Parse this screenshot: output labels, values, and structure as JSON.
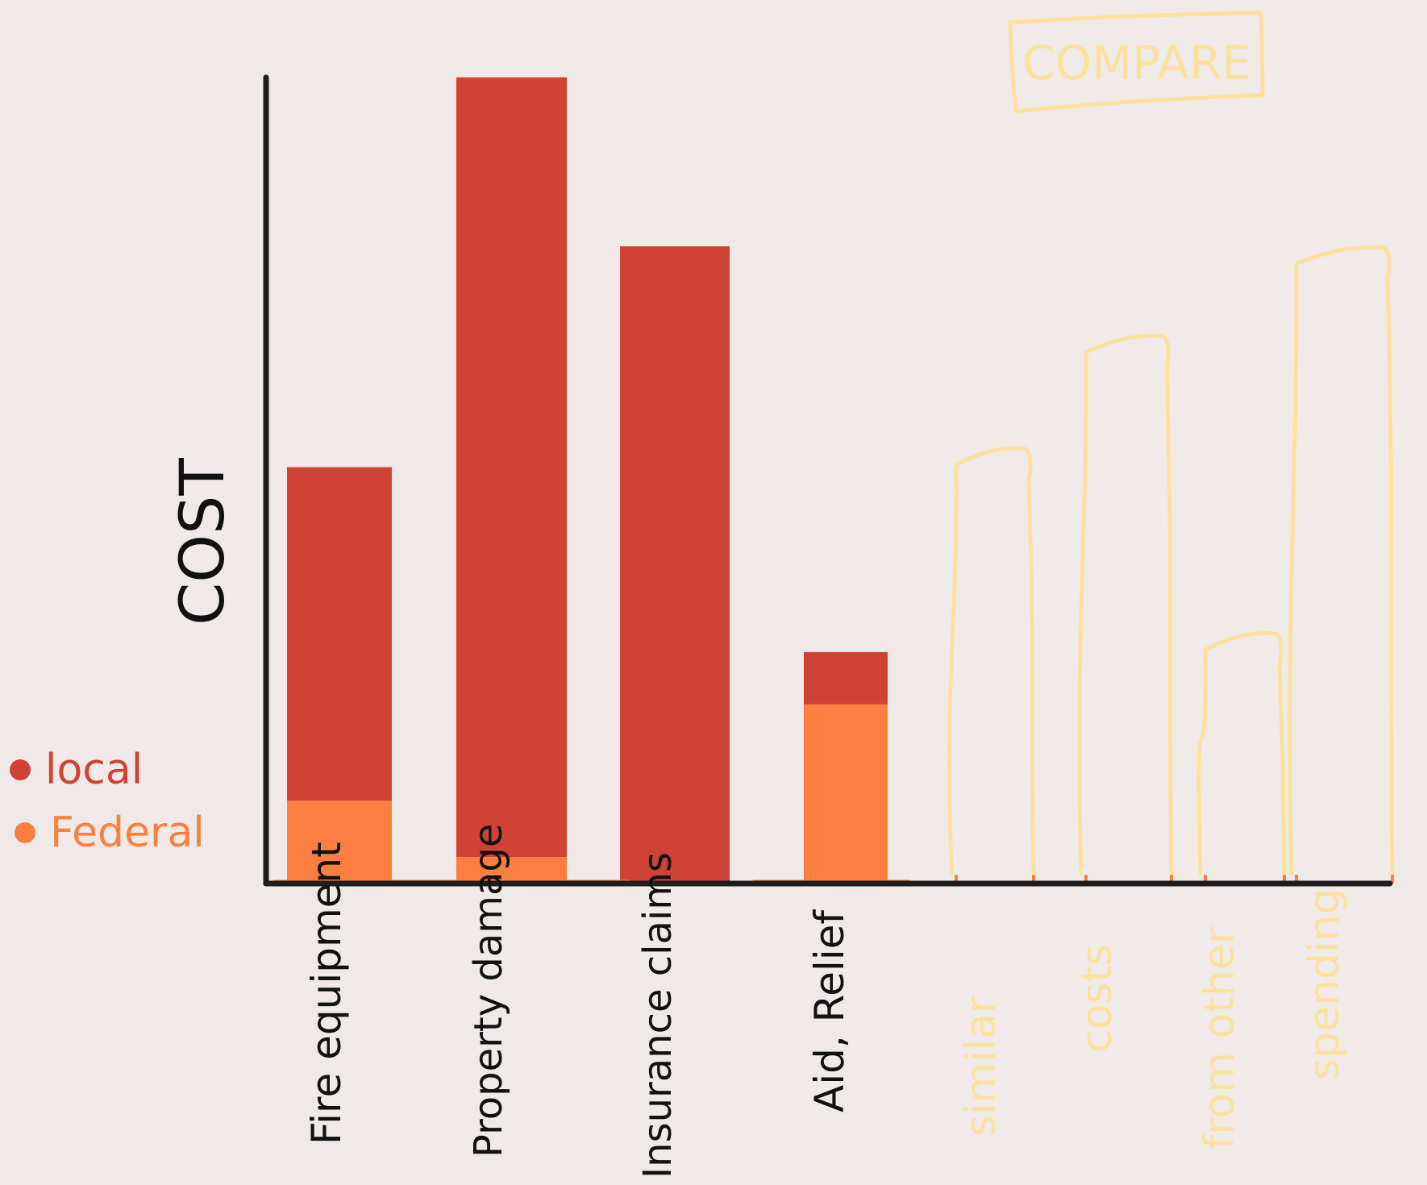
{
  "chart_data": {
    "type": "bar",
    "stacked": true,
    "ylabel": "COST",
    "xlabel": "",
    "ylim": [
      0,
      100
    ],
    "grid": false,
    "legend_position": "left",
    "categories": [
      "Fire equipment",
      "Property damage",
      "Insurance claims",
      "Aid, Relief"
    ],
    "series": [
      {
        "name": "Federal",
        "color": "#fc7f3f",
        "values": [
          10,
          3,
          0,
          22
        ]
      },
      {
        "name": "local",
        "color": "#cf4235",
        "values": [
          41.5,
          97,
          79,
          6.5
        ]
      }
    ],
    "comparison": {
      "label": "COMPARE",
      "color": "#fde29e",
      "categories": [
        "similar",
        "costs",
        "from other",
        "spending"
      ],
      "values": [
        54,
        68,
        31,
        79
      ]
    }
  },
  "colors": {
    "background": "#efeae8",
    "axis": "#1e1e1e",
    "local": "#cf4235",
    "federal": "#fc7f3f",
    "sketch": "#fde29e"
  }
}
